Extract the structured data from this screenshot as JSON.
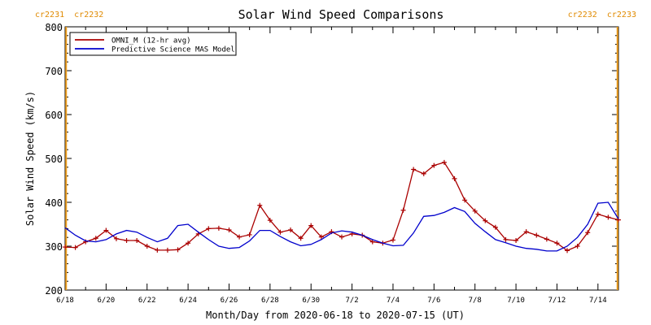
{
  "chart_data": {
    "type": "line",
    "title": "Solar Wind Speed Comparisons",
    "xlabel": "Month/Day from 2020-06-18 to 2020-07-15 (UT)",
    "ylabel": "Solar Wind Speed (km/s)",
    "xlim": [
      0,
      27
    ],
    "ylim": [
      200,
      800
    ],
    "yticks": [
      200,
      300,
      400,
      500,
      600,
      700,
      800
    ],
    "xticks": [
      {
        "x": 0,
        "label": "6/18"
      },
      {
        "x": 2,
        "label": "6/20"
      },
      {
        "x": 4,
        "label": "6/22"
      },
      {
        "x": 6,
        "label": "6/24"
      },
      {
        "x": 8,
        "label": "6/26"
      },
      {
        "x": 10,
        "label": "6/28"
      },
      {
        "x": 12,
        "label": "6/30"
      },
      {
        "x": 14,
        "label": "7/2"
      },
      {
        "x": 16,
        "label": "7/4"
      },
      {
        "x": 18,
        "label": "7/6"
      },
      {
        "x": 20,
        "label": "7/8"
      },
      {
        "x": 22,
        "label": "7/10"
      },
      {
        "x": 24,
        "label": "7/12"
      },
      {
        "x": 26,
        "label": "7/14"
      }
    ],
    "carrington": {
      "left": {
        "x": 0.05,
        "label": "cr2231  cr2232"
      },
      "right": {
        "x": 26.95,
        "label": "cr2232  cr2233"
      }
    },
    "legend_position": "top-left",
    "series": [
      {
        "name": "OMNI_M (12-hr avg)",
        "color": "#aa0000",
        "markers": true,
        "x": [
          0,
          0.5,
          1,
          1.5,
          2,
          2.5,
          3,
          3.5,
          4,
          4.5,
          5,
          5.5,
          6,
          6.5,
          7,
          7.5,
          8,
          8.5,
          9,
          9.5,
          10,
          10.5,
          11,
          11.5,
          12,
          12.5,
          13,
          13.5,
          14,
          14.5,
          15,
          15.5,
          16,
          16.5,
          17,
          17.5,
          18,
          18.5,
          19,
          19.5,
          20,
          20.5,
          21,
          21.5,
          22,
          22.5,
          23,
          23.5,
          24,
          24.5,
          25,
          25.5,
          26,
          26.5,
          27
        ],
        "y": [
          298,
          297,
          310,
          318,
          336,
          317,
          313,
          313,
          300,
          291,
          291,
          292,
          307,
          328,
          340,
          341,
          337,
          321,
          326,
          393,
          359,
          332,
          337,
          318,
          347,
          321,
          333,
          321,
          328,
          325,
          310,
          307,
          314,
          382,
          475,
          465,
          484,
          491,
          454,
          405,
          380,
          358,
          343,
          315,
          313,
          333,
          325,
          316,
          307,
          290,
          300,
          331,
          373,
          366,
          360
        ]
      },
      {
        "name": "Predictive Science MAS Model",
        "color": "#0000cc",
        "markers": false,
        "x": [
          0,
          0.5,
          1,
          1.5,
          2,
          2.5,
          3,
          3.5,
          4,
          4.5,
          5,
          5.5,
          6,
          6.5,
          7,
          7.5,
          8,
          8.5,
          9,
          9.5,
          10,
          10.5,
          11,
          11.5,
          12,
          12.5,
          13,
          13.5,
          14,
          14.5,
          15,
          15.5,
          16,
          16.5,
          17,
          17.5,
          18,
          18.5,
          19,
          19.5,
          20,
          20.5,
          21,
          21.5,
          22,
          22.5,
          23,
          23.5,
          24,
          24.5,
          25,
          25.5,
          26,
          26.5,
          27
        ],
        "y": [
          342,
          325,
          312,
          310,
          315,
          328,
          336,
          332,
          320,
          310,
          318,
          347,
          350,
          332,
          315,
          300,
          295,
          297,
          312,
          336,
          336,
          322,
          310,
          301,
          304,
          315,
          330,
          335,
          332,
          325,
          315,
          307,
          301,
          302,
          330,
          368,
          370,
          377,
          388,
          379,
          352,
          333,
          315,
          308,
          300,
          295,
          293,
          289,
          289,
          300,
          320,
          350,
          398,
          400,
          362
        ]
      }
    ]
  }
}
